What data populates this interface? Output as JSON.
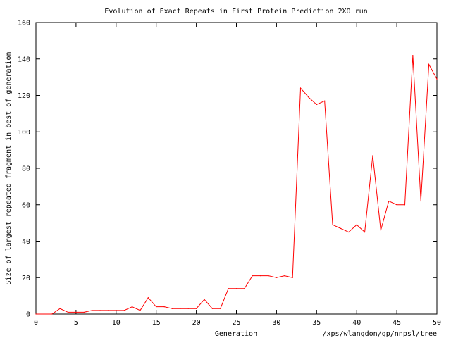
{
  "chart_data": {
    "type": "line",
    "title": "Evolution of Exact Repeats in First Protein Prediction 2XO run",
    "xlabel": "Generation",
    "ylabel": "Size of largest repeated fragment in best of generation",
    "footer": "/xps/wlangdon/gp/nnpsl/tree",
    "xlim": [
      0,
      50
    ],
    "ylim": [
      0,
      160
    ],
    "xticks": [
      0,
      5,
      10,
      15,
      20,
      25,
      30,
      35,
      40,
      45,
      50
    ],
    "yticks": [
      0,
      20,
      40,
      60,
      80,
      100,
      120,
      140,
      160
    ],
    "grid": false,
    "legend": "none",
    "line_color": "#ff0000",
    "series": [
      {
        "x": [
          0,
          1,
          2,
          3,
          4,
          5,
          6,
          7,
          8,
          9,
          10,
          11,
          12,
          13,
          14,
          15,
          16,
          17,
          18,
          19,
          20,
          21,
          22,
          23,
          24,
          25,
          26,
          27,
          28,
          29,
          30,
          31,
          32,
          33,
          34,
          35,
          36,
          37,
          38,
          39,
          40,
          41,
          42,
          43,
          44,
          45,
          46,
          47,
          48,
          49,
          50
        ],
        "y": [
          0,
          0,
          0,
          3,
          1,
          1,
          1,
          2,
          2,
          2,
          2,
          2,
          4,
          2,
          9,
          4,
          4,
          3,
          3,
          3,
          3,
          8,
          3,
          3,
          14,
          14,
          14,
          21,
          21,
          21,
          20,
          21,
          20,
          124,
          119,
          115,
          117,
          49,
          47,
          45,
          49,
          45,
          87,
          46,
          62,
          60,
          60,
          142,
          62,
          137,
          129
        ]
      }
    ]
  }
}
